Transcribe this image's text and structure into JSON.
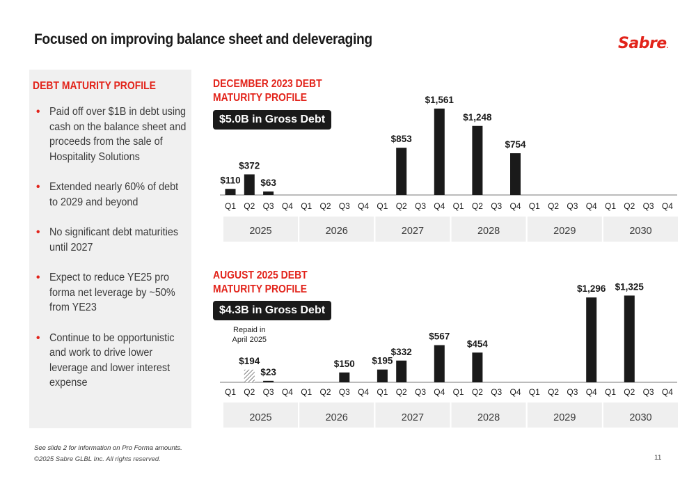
{
  "header": {
    "title": "Focused on improving balance sheet and deleveraging",
    "logo_text": "Sabre",
    "logo_mark": "."
  },
  "left_panel": {
    "heading": "DEBT MATURITY PROFILE",
    "bullets": [
      "Paid off over $1B in debt using cash on the balance sheet and proceeds from the sale of Hospitality Solutions",
      "Extended nearly 60% of debt to 2029 and beyond",
      "No significant debt maturities until 2027",
      "Expect to reduce YE25 pro forma net leverage by ~50% from YE23",
      "Continue to be opportunistic and work to drive lower leverage and lower interest expense"
    ]
  },
  "chart_data": [
    {
      "type": "bar",
      "title": "DECEMBER 2023 DEBT MATURITY PROFILE",
      "badge": "$5.0B in Gross Debt",
      "years": [
        "2025",
        "2026",
        "2027",
        "2028",
        "2029",
        "2030"
      ],
      "quarters": [
        "Q1",
        "Q2",
        "Q3",
        "Q4"
      ],
      "bars": [
        {
          "year": "2025",
          "quarter": "Q1",
          "value": 110,
          "label": "$110"
        },
        {
          "year": "2025",
          "quarter": "Q2",
          "value": 372,
          "label": "$372"
        },
        {
          "year": "2025",
          "quarter": "Q3",
          "value": 63,
          "label": "$63"
        },
        {
          "year": "2027",
          "quarter": "Q2",
          "value": 853,
          "label": "$853"
        },
        {
          "year": "2027",
          "quarter": "Q4",
          "value": 1561,
          "label": "$1,561"
        },
        {
          "year": "2028",
          "quarter": "Q2",
          "value": 1248,
          "label": "$1,248"
        },
        {
          "year": "2028",
          "quarter": "Q4",
          "value": 754,
          "label": "$754"
        }
      ],
      "colors": {
        "bar": "#1a1a1a",
        "year_band": "#efefef"
      }
    },
    {
      "type": "bar",
      "title": "AUGUST 2025 DEBT MATURITY PROFILE",
      "badge": "$4.3B in Gross Debt",
      "years": [
        "2025",
        "2026",
        "2027",
        "2028",
        "2029",
        "2030"
      ],
      "quarters": [
        "Q1",
        "Q2",
        "Q3",
        "Q4"
      ],
      "bars": [
        {
          "year": "2025",
          "quarter": "Q2",
          "value": 194,
          "label": "$194",
          "style": "hatched"
        },
        {
          "year": "2025",
          "quarter": "Q3",
          "value": 23,
          "label": "$23"
        },
        {
          "year": "2026",
          "quarter": "Q3",
          "value": 150,
          "label": "$150"
        },
        {
          "year": "2027",
          "quarter": "Q1",
          "value": 195,
          "label": "$195"
        },
        {
          "year": "2027",
          "quarter": "Q2",
          "value": 332,
          "label": "$332"
        },
        {
          "year": "2027",
          "quarter": "Q4",
          "value": 567,
          "label": "$567"
        },
        {
          "year": "2028",
          "quarter": "Q2",
          "value": 454,
          "label": "$454"
        },
        {
          "year": "2029",
          "quarter": "Q4",
          "value": 1296,
          "label": "$1,296"
        },
        {
          "year": "2030",
          "quarter": "Q2",
          "value": 1325,
          "label": "$1,325"
        }
      ],
      "annotation": {
        "text_line1": "Repaid in",
        "text_line2": "April 2025",
        "year": "2025",
        "quarter": "Q2"
      },
      "colors": {
        "bar": "#1a1a1a",
        "year_band": "#efefef"
      }
    }
  ],
  "footer": {
    "note": "See slide 2 for information on Pro Forma amounts.",
    "copyright": "©2025 Sabre GLBL Inc. All rights reserved.",
    "page_number": "11"
  }
}
